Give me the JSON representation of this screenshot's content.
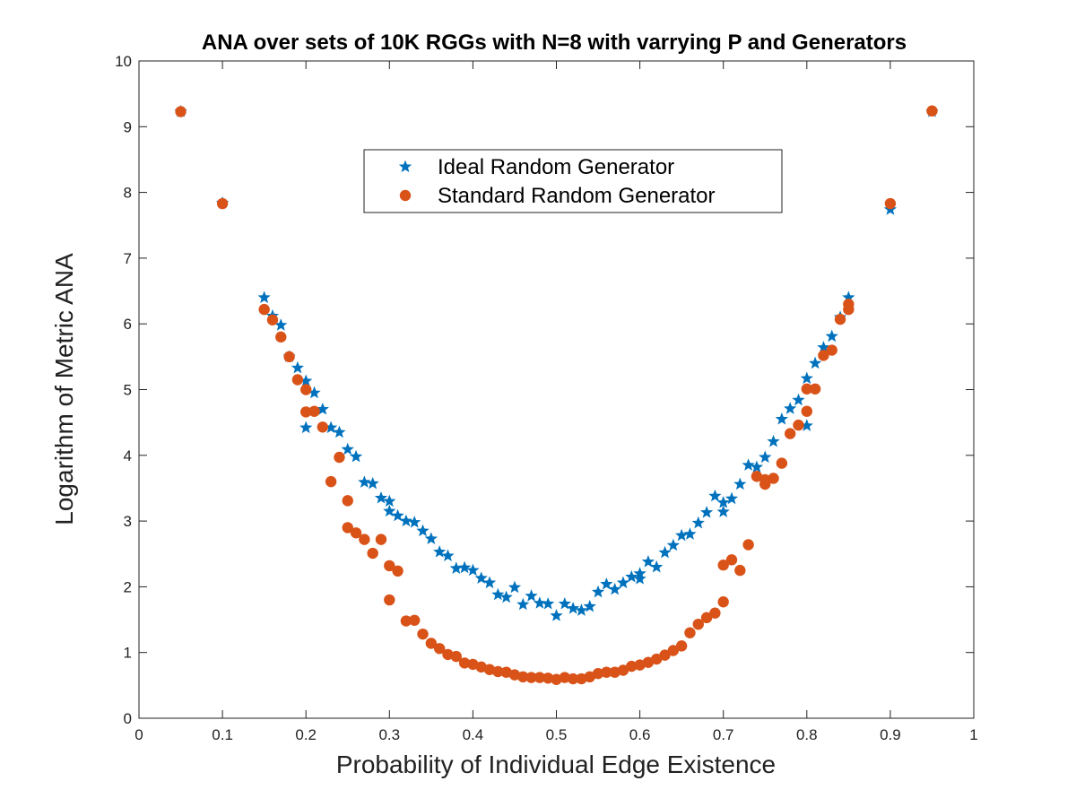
{
  "chart_data": {
    "type": "scatter",
    "title": "ANA over sets of 10K RGGs with N=8 with varrying P and Generators",
    "xlabel": "Probability of Individual Edge Existence",
    "ylabel": "Logarithm of Metric ANA",
    "xlim": [
      0,
      1
    ],
    "ylim": [
      0,
      10
    ],
    "xticks": [
      "0",
      "0.1",
      "0.2",
      "0.3",
      "0.4",
      "0.5",
      "0.6",
      "0.7",
      "0.8",
      "0.9",
      "1"
    ],
    "yticks": [
      "0",
      "1",
      "2",
      "3",
      "4",
      "5",
      "6",
      "7",
      "8",
      "9",
      "10"
    ],
    "grid": false,
    "legend_position": "top-center",
    "series": [
      {
        "name": "Ideal Random Generator",
        "marker": "star",
        "color": "#0072BD",
        "points": [
          [
            0.05,
            9.23
          ],
          [
            0.1,
            7.84
          ],
          [
            0.15,
            6.4
          ],
          [
            0.16,
            6.12
          ],
          [
            0.17,
            5.98
          ],
          [
            0.18,
            5.5
          ],
          [
            0.19,
            5.33
          ],
          [
            0.2,
            5.13
          ],
          [
            0.2,
            4.42
          ],
          [
            0.21,
            4.95
          ],
          [
            0.22,
            4.7
          ],
          [
            0.23,
            4.42
          ],
          [
            0.24,
            4.35
          ],
          [
            0.25,
            4.09
          ],
          [
            0.26,
            3.98
          ],
          [
            0.27,
            3.59
          ],
          [
            0.28,
            3.57
          ],
          [
            0.29,
            3.35
          ],
          [
            0.3,
            3.3
          ],
          [
            0.3,
            3.15
          ],
          [
            0.31,
            3.08
          ],
          [
            0.32,
            3.0
          ],
          [
            0.33,
            2.98
          ],
          [
            0.34,
            2.85
          ],
          [
            0.35,
            2.73
          ],
          [
            0.36,
            2.53
          ],
          [
            0.37,
            2.47
          ],
          [
            0.38,
            2.28
          ],
          [
            0.39,
            2.29
          ],
          [
            0.4,
            2.25
          ],
          [
            0.41,
            2.13
          ],
          [
            0.42,
            2.06
          ],
          [
            0.43,
            1.88
          ],
          [
            0.44,
            1.84
          ],
          [
            0.45,
            1.99
          ],
          [
            0.46,
            1.73
          ],
          [
            0.47,
            1.86
          ],
          [
            0.48,
            1.75
          ],
          [
            0.49,
            1.74
          ],
          [
            0.5,
            1.56
          ],
          [
            0.51,
            1.74
          ],
          [
            0.52,
            1.67
          ],
          [
            0.53,
            1.64
          ],
          [
            0.54,
            1.7
          ],
          [
            0.55,
            1.92
          ],
          [
            0.56,
            2.04
          ],
          [
            0.57,
            1.96
          ],
          [
            0.58,
            2.06
          ],
          [
            0.59,
            2.15
          ],
          [
            0.6,
            2.2
          ],
          [
            0.6,
            2.12
          ],
          [
            0.61,
            2.38
          ],
          [
            0.62,
            2.3
          ],
          [
            0.63,
            2.52
          ],
          [
            0.64,
            2.63
          ],
          [
            0.65,
            2.78
          ],
          [
            0.66,
            2.8
          ],
          [
            0.67,
            2.97
          ],
          [
            0.68,
            3.13
          ],
          [
            0.69,
            3.38
          ],
          [
            0.7,
            3.28
          ],
          [
            0.7,
            3.14
          ],
          [
            0.71,
            3.34
          ],
          [
            0.72,
            3.56
          ],
          [
            0.73,
            3.85
          ],
          [
            0.74,
            3.82
          ],
          [
            0.75,
            3.97
          ],
          [
            0.76,
            4.21
          ],
          [
            0.77,
            4.55
          ],
          [
            0.78,
            4.71
          ],
          [
            0.79,
            4.84
          ],
          [
            0.8,
            5.17
          ],
          [
            0.8,
            4.45
          ],
          [
            0.81,
            5.4
          ],
          [
            0.82,
            5.64
          ],
          [
            0.83,
            5.81
          ],
          [
            0.84,
            6.1
          ],
          [
            0.85,
            6.4
          ],
          [
            0.9,
            7.74
          ],
          [
            0.95,
            9.23
          ]
        ]
      },
      {
        "name": "Standard Random Generator",
        "marker": "circle",
        "color": "#D95319",
        "points": [
          [
            0.05,
            9.23
          ],
          [
            0.1,
            7.83
          ],
          [
            0.15,
            6.22
          ],
          [
            0.16,
            6.06
          ],
          [
            0.17,
            5.8
          ],
          [
            0.18,
            5.5
          ],
          [
            0.19,
            5.15
          ],
          [
            0.2,
            5.0
          ],
          [
            0.2,
            4.66
          ],
          [
            0.21,
            4.67
          ],
          [
            0.22,
            4.43
          ],
          [
            0.23,
            3.6
          ],
          [
            0.24,
            3.97
          ],
          [
            0.25,
            3.31
          ],
          [
            0.25,
            2.9
          ],
          [
            0.26,
            2.82
          ],
          [
            0.27,
            2.72
          ],
          [
            0.28,
            2.51
          ],
          [
            0.29,
            2.72
          ],
          [
            0.3,
            2.32
          ],
          [
            0.3,
            1.8
          ],
          [
            0.31,
            2.24
          ],
          [
            0.32,
            1.48
          ],
          [
            0.33,
            1.49
          ],
          [
            0.34,
            1.28
          ],
          [
            0.35,
            1.14
          ],
          [
            0.36,
            1.06
          ],
          [
            0.37,
            0.97
          ],
          [
            0.38,
            0.94
          ],
          [
            0.39,
            0.84
          ],
          [
            0.4,
            0.82
          ],
          [
            0.41,
            0.78
          ],
          [
            0.42,
            0.74
          ],
          [
            0.43,
            0.71
          ],
          [
            0.44,
            0.7
          ],
          [
            0.45,
            0.66
          ],
          [
            0.46,
            0.63
          ],
          [
            0.47,
            0.62
          ],
          [
            0.48,
            0.62
          ],
          [
            0.49,
            0.61
          ],
          [
            0.5,
            0.59
          ],
          [
            0.51,
            0.62
          ],
          [
            0.52,
            0.6
          ],
          [
            0.53,
            0.6
          ],
          [
            0.54,
            0.63
          ],
          [
            0.55,
            0.68
          ],
          [
            0.56,
            0.7
          ],
          [
            0.57,
            0.7
          ],
          [
            0.58,
            0.73
          ],
          [
            0.59,
            0.79
          ],
          [
            0.6,
            0.81
          ],
          [
            0.61,
            0.85
          ],
          [
            0.62,
            0.9
          ],
          [
            0.63,
            0.96
          ],
          [
            0.64,
            1.03
          ],
          [
            0.65,
            1.1
          ],
          [
            0.66,
            1.3
          ],
          [
            0.67,
            1.43
          ],
          [
            0.68,
            1.53
          ],
          [
            0.69,
            1.6
          ],
          [
            0.7,
            2.33
          ],
          [
            0.7,
            1.77
          ],
          [
            0.71,
            2.41
          ],
          [
            0.72,
            2.25
          ],
          [
            0.73,
            2.64
          ],
          [
            0.74,
            3.68
          ],
          [
            0.75,
            3.56
          ],
          [
            0.75,
            3.63
          ],
          [
            0.76,
            3.65
          ],
          [
            0.77,
            3.88
          ],
          [
            0.78,
            4.33
          ],
          [
            0.79,
            4.46
          ],
          [
            0.8,
            5.01
          ],
          [
            0.8,
            4.67
          ],
          [
            0.81,
            5.01
          ],
          [
            0.82,
            5.52
          ],
          [
            0.83,
            5.6
          ],
          [
            0.84,
            6.07
          ],
          [
            0.85,
            6.22
          ],
          [
            0.85,
            6.3
          ],
          [
            0.9,
            7.83
          ],
          [
            0.95,
            9.24
          ]
        ]
      }
    ]
  }
}
